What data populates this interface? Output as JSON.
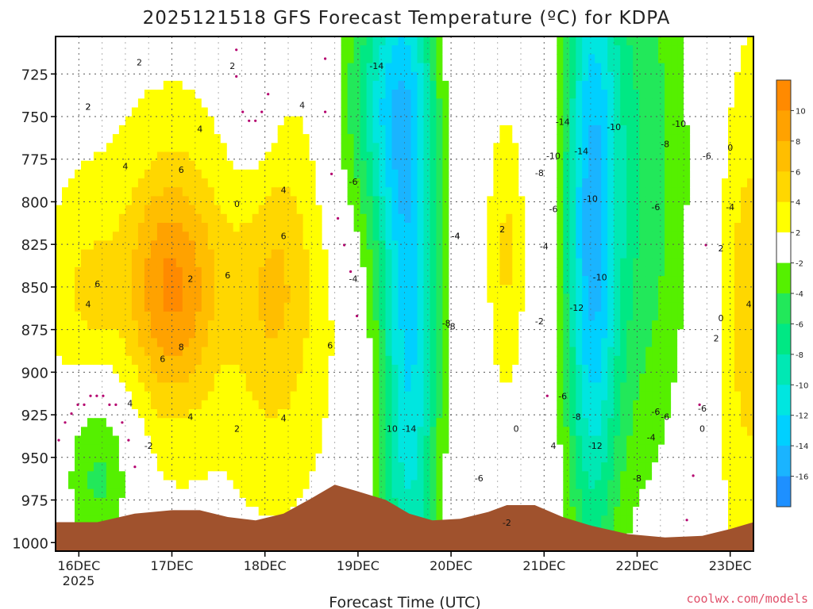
{
  "chart_data": {
    "type": "heatmap",
    "title": "2025121518 GFS Forecast Temperature (ºC) for KDPA",
    "xlabel": "Forecast Time (UTC)",
    "ylabel": "",
    "x_ticks": [
      "16DEC",
      "17DEC",
      "18DEC",
      "19DEC",
      "20DEC",
      "21DEC",
      "22DEC",
      "23DEC"
    ],
    "x_subtick": "2025",
    "y_ticks": [
      725,
      750,
      775,
      800,
      825,
      850,
      875,
      900,
      925,
      950,
      975,
      1000
    ],
    "ylim": [
      703,
      1005
    ],
    "xlim_days": [
      15.75,
      23.25
    ],
    "colorbar": {
      "levels": [
        -18,
        -16,
        -14,
        -12,
        -10,
        -8,
        -6,
        -4,
        -2,
        2,
        4,
        6,
        8,
        10,
        12
      ],
      "colors": [
        "#1e90ff",
        "#1ab4ff",
        "#00d0ff",
        "#00e6e0",
        "#00e8b4",
        "#00e884",
        "#22e85a",
        "#55f000",
        "#ffffff",
        "#ffff00",
        "#ffd700",
        "#ffbe00",
        "#ffa200",
        "#ff8a00"
      ],
      "tick_labels": [
        "10",
        "8",
        "6",
        "4",
        "2",
        "-2",
        "-4",
        "-6",
        "-8",
        "-10",
        "-12",
        "-14",
        "-16"
      ]
    },
    "ground_color": "#a0522d",
    "freezing_contour_color": "#b4006e",
    "contour_labels": [
      "2",
      "2",
      "4",
      "4",
      "6",
      "6",
      "8",
      "6",
      "4",
      "4",
      "6",
      "4",
      "2",
      "0",
      "4",
      "6",
      "4",
      "6",
      "4",
      "2",
      "2",
      "2",
      "-2",
      "-14",
      "-6",
      "-4",
      "-10",
      "-14",
      "-8",
      "-6",
      "-4",
      "-8",
      "-4",
      "2",
      "0",
      "-14",
      "-10",
      "-14",
      "-8",
      "-10",
      "-6",
      "-4",
      "-2",
      "-12",
      "-10",
      "-10",
      "-6",
      "-8",
      "4",
      "-12",
      "-8",
      "-6",
      "-10",
      "-8",
      "-6",
      "-6",
      "-4",
      "2",
      "0",
      "2",
      "-6",
      "-4",
      "-2",
      "0",
      "-6",
      "2",
      "0",
      "4"
    ],
    "grid": true
  },
  "credit": "coolwx.com/models"
}
